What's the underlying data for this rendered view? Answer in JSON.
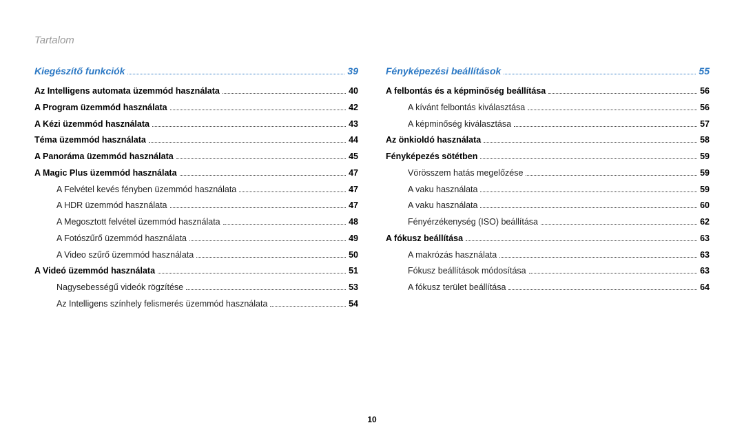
{
  "header": "Tartalom",
  "page_number": "10",
  "colors": {
    "section_heading": "#2b78c4",
    "header_text": "#9a9a9a",
    "body_text": "#222222",
    "background": "#ffffff"
  },
  "fonts": {
    "header_size_pt": 15,
    "section_size_pt": 14,
    "entry_size_pt": 12.5,
    "header_style": "italic",
    "section_style": "italic bold"
  },
  "left": {
    "section": {
      "label": "Kiegészítő funkciók",
      "page": "39"
    },
    "entries": [
      {
        "label": "Az Intelligens automata üzemmód használata",
        "page": "40",
        "lvl": 1
      },
      {
        "label": "A Program üzemmód használata",
        "page": "42",
        "lvl": 1
      },
      {
        "label": "A Kézi üzemmód használata",
        "page": "43",
        "lvl": 1
      },
      {
        "label": "Téma üzemmód használata",
        "page": "44",
        "lvl": 1
      },
      {
        "label": "A Panoráma üzemmód használata",
        "page": "45",
        "lvl": 1
      },
      {
        "label": "A Magic Plus üzemmód használata",
        "page": "47",
        "lvl": 1
      },
      {
        "label": "A Felvétel kevés fényben üzemmód használata",
        "page": "47",
        "lvl": 2
      },
      {
        "label": "A HDR üzemmód használata",
        "page": "47",
        "lvl": 2
      },
      {
        "label": "A Megosztott felvétel üzemmód használata",
        "page": "48",
        "lvl": 2
      },
      {
        "label": "A Fotószűrő üzemmód használata",
        "page": "49",
        "lvl": 2
      },
      {
        "label": "A Video szűrő üzemmód használata",
        "page": "50",
        "lvl": 2
      },
      {
        "label": "A Videó üzemmód használata",
        "page": "51",
        "lvl": 1
      },
      {
        "label": "Nagysebességű videók rögzítése",
        "page": "53",
        "lvl": 2
      },
      {
        "label": "Az Intelligens színhely felismerés üzemmód használata",
        "page": "54",
        "lvl": 2
      }
    ]
  },
  "right": {
    "section": {
      "label": "Fényképezési beállítások",
      "page": "55"
    },
    "entries": [
      {
        "label": "A felbontás és a képminőség beállítása",
        "page": "56",
        "lvl": 1
      },
      {
        "label": "A kívánt felbontás kiválasztása",
        "page": "56",
        "lvl": 2
      },
      {
        "label": "A képminőség kiválasztása",
        "page": "57",
        "lvl": 2
      },
      {
        "label": "Az önkioldó használata",
        "page": "58",
        "lvl": 1
      },
      {
        "label": "Fényképezés sötétben",
        "page": "59",
        "lvl": 1
      },
      {
        "label": "Vörösszem hatás megelőzése",
        "page": "59",
        "lvl": 2
      },
      {
        "label": "A vaku használata",
        "page": "59",
        "lvl": 2
      },
      {
        "label": "A vaku használata",
        "page": "60",
        "lvl": 2
      },
      {
        "label": "Fényérzékenység (ISO) beállítása",
        "page": "62",
        "lvl": 2
      },
      {
        "label": "A fókusz beállítása",
        "page": "63",
        "lvl": 1
      },
      {
        "label": "A makrózás használata",
        "page": "63",
        "lvl": 2
      },
      {
        "label": "Fókusz beállítások módosítása",
        "page": "63",
        "lvl": 2
      },
      {
        "label": "A fókusz terület beállítása",
        "page": "64",
        "lvl": 2
      }
    ]
  }
}
